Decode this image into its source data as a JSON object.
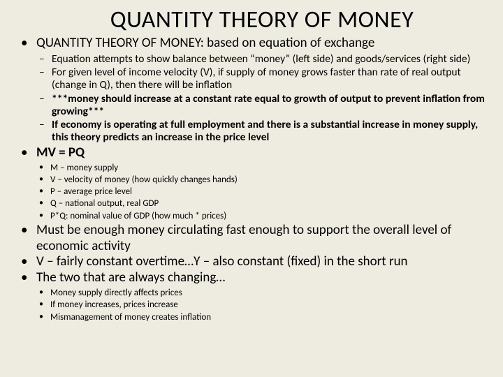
{
  "title": "QUANTITY THEORY OF MONEY",
  "b1": {
    "head": "QUANTITY THEORY OF MONEY: based on equation of exchange",
    "sub": [
      "Equation attempts to show balance between “money” (left side) and goods/services (right side)",
      "For given level of income velocity (V), if supply of money grows faster than rate of real output (change in Q), then there will be inflation",
      "***money should increase at a constant rate equal to growth of output to prevent inflation from growing***",
      "If economy is operating at full employment and there is a substantial increase in money supply, this theory predicts an increase in the price level"
    ]
  },
  "b2": {
    "head": "MV = PQ",
    "sub": [
      "M – money supply",
      "V – velocity of money (how quickly changes hands)",
      "P – average price level",
      "Q – national output, real GDP",
      "P*Q: nominal value of GDP (how much * prices)"
    ]
  },
  "b3": "Must be enough money circulating fast enough to support the overall level of economic activity",
  "b4": "V – fairly constant overtime…Y – also constant (fixed) in the short run",
  "b5": {
    "head": "The two that are always changing…",
    "sub": [
      "Money supply directly affects prices",
      "If money increases, prices increase",
      "Mismanagement of money creates inflation"
    ]
  },
  "style": {
    "background": "#eeece1",
    "text_color": "#000000",
    "title_fontsize": 34,
    "l1_fontsize": 19,
    "l2_fontsize": 15.5,
    "l3_fontsize": 13,
    "font_family": "Calibri"
  }
}
